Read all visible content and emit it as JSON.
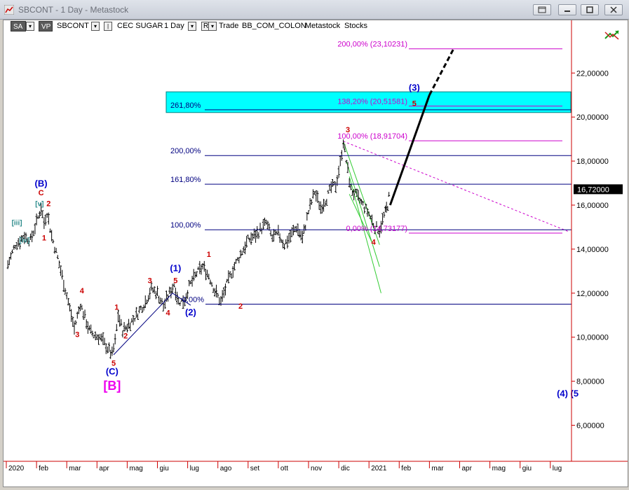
{
  "window": {
    "title": "SBCONT - 1 Day - Metastock"
  },
  "toolbar": {
    "sa_label": "SA",
    "vp_label": "VP",
    "symbol": "SBCONT",
    "security_name": "CEC SUGAR",
    "period": "1 Day",
    "r_label": "R",
    "trade_label": "Trade",
    "source": "BB_COM_COLON",
    "app_name": "Metastock",
    "type": "Stocks"
  },
  "colors": {
    "price": "#000000",
    "fib_blue": "#000080",
    "fib_magenta": "#cc00cc",
    "wave_blue": "#0000cc",
    "wave_red": "#cc0000",
    "channel": "#33cc33",
    "band": "#00ffff",
    "projection": "#000000"
  },
  "chart_data": {
    "type": "line",
    "title": "",
    "xlabel": "",
    "ylabel": "",
    "ylim": [
      4.7,
      24.2
    ],
    "y_ticks": [
      "6,00000",
      "8,00000",
      "10,00000",
      "12,00000",
      "14,00000",
      "16,00000",
      "18,00000",
      "20,00000",
      "22,00000"
    ],
    "y_tick_values": [
      6,
      8,
      10,
      12,
      14,
      16,
      18,
      20,
      22
    ],
    "x_ticks": [
      "2020",
      "feb",
      "mar",
      "apr",
      "mag",
      "giu",
      "lug",
      "ago",
      "set",
      "ott",
      "nov",
      "dic",
      "2021",
      "feb",
      "mar",
      "apr",
      "mag",
      "giu",
      "lug"
    ],
    "x_tick_months": [
      0,
      1,
      2,
      3,
      4,
      5,
      6,
      7,
      8,
      9,
      10,
      11,
      12,
      13,
      14,
      15,
      16,
      17,
      18
    ],
    "last_price": "16,72000",
    "last_price_value": 16.72,
    "series": [
      {
        "values": [
          [
            0.05,
            13.3
          ],
          [
            0.3,
            14.2
          ],
          [
            0.6,
            14.6
          ],
          [
            0.8,
            14.4
          ],
          [
            1.0,
            15.2
          ],
          [
            1.15,
            15.9
          ],
          [
            1.25,
            15.2
          ],
          [
            1.35,
            15.7
          ],
          [
            1.5,
            14.6
          ],
          [
            1.7,
            13.6
          ],
          [
            1.95,
            12.2
          ],
          [
            2.1,
            11.3
          ],
          [
            2.25,
            10.4
          ],
          [
            2.45,
            11.5
          ],
          [
            2.6,
            10.9
          ],
          [
            2.75,
            10.3
          ],
          [
            2.9,
            10.1
          ],
          [
            3.1,
            10.0
          ],
          [
            3.3,
            9.6
          ],
          [
            3.5,
            9.2
          ],
          [
            3.6,
            9.8
          ],
          [
            3.7,
            11.0
          ],
          [
            3.85,
            10.3
          ],
          [
            4.0,
            10.5
          ],
          [
            4.2,
            10.8
          ],
          [
            4.4,
            11.2
          ],
          [
            4.6,
            11.6
          ],
          [
            4.8,
            12.2
          ],
          [
            5.0,
            12.0
          ],
          [
            5.2,
            11.4
          ],
          [
            5.4,
            12.0
          ],
          [
            5.55,
            12.4
          ],
          [
            5.7,
            11.6
          ],
          [
            5.9,
            11.7
          ],
          [
            6.05,
            12.3
          ],
          [
            6.3,
            12.9
          ],
          [
            6.5,
            13.2
          ],
          [
            6.7,
            12.8
          ],
          [
            6.9,
            12.1
          ],
          [
            7.1,
            11.6
          ],
          [
            7.3,
            12.4
          ],
          [
            7.5,
            13.1
          ],
          [
            7.8,
            13.9
          ],
          [
            8.0,
            14.4
          ],
          [
            8.3,
            14.7
          ],
          [
            8.6,
            15.2
          ],
          [
            8.8,
            14.5
          ],
          [
            9.0,
            14.7
          ],
          [
            9.2,
            14.2
          ],
          [
            9.4,
            14.6
          ],
          [
            9.6,
            15.0
          ],
          [
            9.8,
            14.5
          ],
          [
            10.0,
            15.7
          ],
          [
            10.2,
            16.6
          ],
          [
            10.4,
            15.9
          ],
          [
            10.6,
            16.3
          ],
          [
            10.75,
            16.8
          ],
          [
            10.9,
            16.9
          ],
          [
            11.05,
            17.9
          ],
          [
            11.15,
            18.9
          ],
          [
            11.25,
            18.0
          ],
          [
            11.4,
            16.7
          ],
          [
            11.6,
            16.4
          ],
          [
            11.8,
            16.0
          ],
          [
            12.0,
            15.6
          ],
          [
            12.2,
            15.0
          ],
          [
            12.35,
            14.9
          ],
          [
            12.5,
            15.5
          ],
          [
            12.62,
            16.0
          ],
          [
            12.7,
            16.72
          ]
        ]
      }
    ],
    "levels": [
      {
        "label": "261,80%",
        "value": 20.33
      },
      {
        "label": "200,00%",
        "value": 18.25
      },
      {
        "label": "161,80%",
        "value": 16.95
      },
      {
        "label": "100,00%",
        "value": 14.88
      },
      {
        "label": "200,00% (23,10231)",
        "value": 23.1
      },
      {
        "label": "138,20% (20,51581)",
        "value": 20.5
      },
      {
        "label": "100,00% (18,91704)",
        "value": 18.92
      },
      {
        "label": "0,00% (14,73177)",
        "value": 14.73
      },
      {
        "label": "0,00%",
        "value": 11.5
      }
    ],
    "band_range": [
      20.3,
      21.05
    ],
    "wave_labels": {
      "blue": [
        {
          "text": "(B)",
          "x": 1.15,
          "y": 16.85
        },
        {
          "text": "(C)",
          "x": 3.5,
          "y": 8.3
        },
        {
          "text": "(1)",
          "x": 5.6,
          "y": 13.0
        },
        {
          "text": "(2)",
          "x": 6.1,
          "y": 11.0
        },
        {
          "text": "(3)",
          "x": 13.5,
          "y": 21.2
        },
        {
          "text": "(4)",
          "x": 18.4,
          "y": 7.3
        },
        {
          "text": "(5",
          "x": 18.8,
          "y": 7.3
        }
      ],
      "red": [
        {
          "text": "C",
          "x": 1.15,
          "y": 16.45
        },
        {
          "text": "2",
          "x": 1.4,
          "y": 15.95
        },
        {
          "text": "1",
          "x": 1.25,
          "y": 14.4
        },
        {
          "text": "4",
          "x": 2.5,
          "y": 12.0
        },
        {
          "text": "3",
          "x": 2.35,
          "y": 10.0
        },
        {
          "text": "1",
          "x": 3.65,
          "y": 11.25
        },
        {
          "text": "2",
          "x": 3.95,
          "y": 9.95
        },
        {
          "text": "5",
          "x": 3.55,
          "y": 8.7
        },
        {
          "text": "3",
          "x": 4.75,
          "y": 12.45
        },
        {
          "text": "4",
          "x": 5.35,
          "y": 11.0
        },
        {
          "text": "5",
          "x": 5.6,
          "y": 12.45
        },
        {
          "text": "1",
          "x": 6.7,
          "y": 13.65
        },
        {
          "text": "2",
          "x": 7.75,
          "y": 11.3
        },
        {
          "text": "3",
          "x": 11.3,
          "y": 19.3
        },
        {
          "text": "5",
          "x": 13.5,
          "y": 20.5
        },
        {
          "text": "4",
          "x": 12.15,
          "y": 14.2
        }
      ],
      "teal": [
        {
          "text": "[v]",
          "x": 1.1,
          "y": 15.95
        },
        {
          "text": "[iii]",
          "x": 0.35,
          "y": 15.1
        },
        {
          "text": "[iv]",
          "x": 0.6,
          "y": 14.3
        }
      ],
      "magenta_big": {
        "text": "[B]",
        "x": 3.5,
        "y": 7.6
      }
    }
  }
}
